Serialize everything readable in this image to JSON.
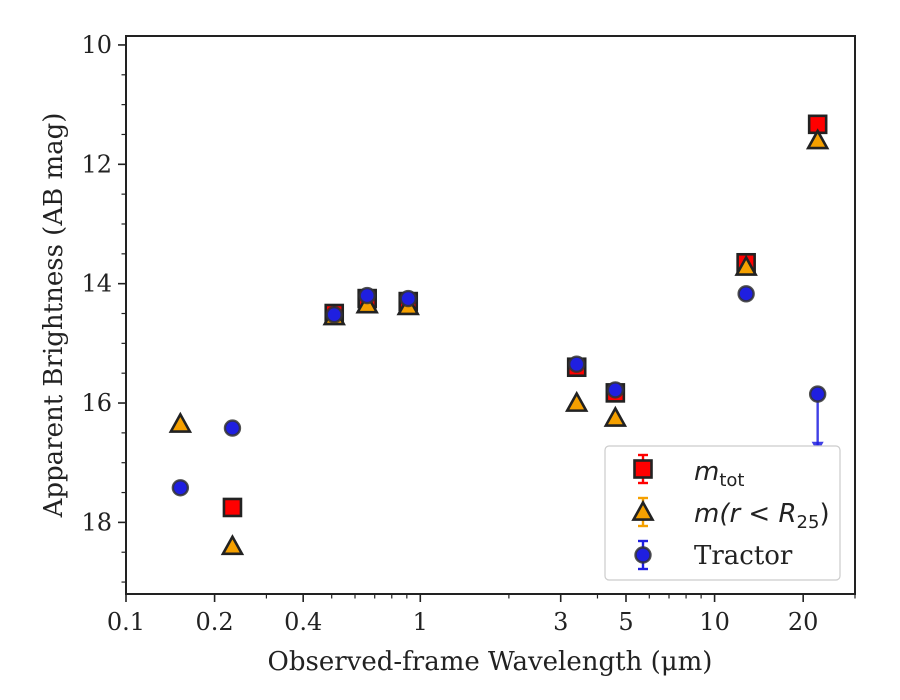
{
  "chart_data": {
    "type": "scatter",
    "xscale": "log",
    "yaxis_inverted": true,
    "xlim": [
      0.1,
      30
    ],
    "ylim": [
      19.2,
      9.85
    ],
    "xticks": [
      {
        "value": 0.1,
        "label": "0.1"
      },
      {
        "value": 0.2,
        "label": "0.2"
      },
      {
        "value": 0.4,
        "label": "0.4"
      },
      {
        "value": 1,
        "label": "1"
      },
      {
        "value": 3,
        "label": "3"
      },
      {
        "value": 5,
        "label": "5"
      },
      {
        "value": 10,
        "label": "10"
      },
      {
        "value": 20,
        "label": "20"
      }
    ],
    "yticks": [
      {
        "value": 10,
        "label": "10"
      },
      {
        "value": 12,
        "label": "12"
      },
      {
        "value": 14,
        "label": "14"
      },
      {
        "value": 16,
        "label": "16"
      },
      {
        "value": 18,
        "label": "18"
      }
    ],
    "xlabel": "Observed-frame Wavelength (μm)",
    "ylabel": "Apparent Brightness (AB mag)",
    "legend_position": "lower-right",
    "series": [
      {
        "legend_main": "m",
        "legend_sub": "tot",
        "marker": "square",
        "color": "#ff0000",
        "points": [
          {
            "x": 0.23,
            "y": 17.75
          },
          {
            "x": 0.51,
            "y": 14.5
          },
          {
            "x": 0.66,
            "y": 14.25
          },
          {
            "x": 0.91,
            "y": 14.3
          },
          {
            "x": 3.4,
            "y": 15.4
          },
          {
            "x": 4.6,
            "y": 15.83
          },
          {
            "x": 12.8,
            "y": 13.65
          },
          {
            "x": 22.4,
            "y": 11.33
          }
        ]
      },
      {
        "legend_main": "m(r < R",
        "legend_sub": "25",
        "legend_tail": ")",
        "marker": "triangle",
        "color": "#f5a000",
        "points": [
          {
            "x": 0.153,
            "y": 16.35
          },
          {
            "x": 0.23,
            "y": 18.4
          },
          {
            "x": 0.51,
            "y": 14.55
          },
          {
            "x": 0.66,
            "y": 14.35
          },
          {
            "x": 0.91,
            "y": 14.38
          },
          {
            "x": 3.4,
            "y": 16.0
          },
          {
            "x": 4.6,
            "y": 16.25
          },
          {
            "x": 12.8,
            "y": 13.72
          },
          {
            "x": 22.4,
            "y": 11.6
          }
        ]
      },
      {
        "legend_main": "Tractor",
        "marker": "circle",
        "color": "#1f1fe0",
        "points": [
          {
            "x": 0.153,
            "y": 17.42
          },
          {
            "x": 0.23,
            "y": 16.42
          },
          {
            "x": 0.51,
            "y": 14.52
          },
          {
            "x": 0.66,
            "y": 14.2
          },
          {
            "x": 0.91,
            "y": 14.25
          },
          {
            "x": 3.4,
            "y": 15.35
          },
          {
            "x": 4.6,
            "y": 15.78
          },
          {
            "x": 12.8,
            "y": 14.17
          },
          {
            "x": 22.4,
            "y": 15.85,
            "upper_limit": true,
            "arrow_to": 16.8
          }
        ]
      }
    ]
  }
}
